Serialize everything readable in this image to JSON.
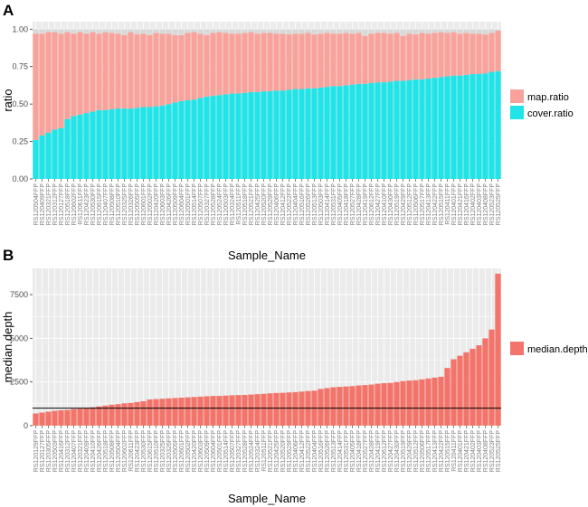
{
  "colors": {
    "panel_bg": "#ebebeb",
    "grid": "#ffffff",
    "gap": "#d9d9d9",
    "map_ratio": "#f8a29b",
    "cover_ratio": "#20e4e7",
    "median_depth": "#f2746a",
    "reference_line": "#000000"
  },
  "chart_data": [
    {
      "panel": "A",
      "type": "bar",
      "stacked": true,
      "xlabel": "Sample_Name",
      "ylabel": "ratio",
      "ylim": [
        0,
        1.05
      ],
      "yticks": [
        0.0,
        0.25,
        0.5,
        0.75,
        1.0
      ],
      "ytick_labels": [
        "0.00",
        "0.25",
        "0.50",
        "0.75",
        "1.00"
      ],
      "categories": [
        "RS120504FFP",
        "RS120409FFP",
        "RS120321FFP",
        "RS120312FFP",
        "RS120127FFP",
        "RS120518FFP",
        "RS120602FFP",
        "RS120611FFP",
        "RS120423FFP",
        "RS120530FFP",
        "RS120615FFP",
        "RS120407FFP",
        "RS120508FFP",
        "RS120510FFP",
        "RS120325FFP",
        "RS120326FFP",
        "RS120505FFP",
        "RS120601FFP",
        "RS120502FFP",
        "RS120420FFP",
        "RS120603FFP",
        "RS120426FFP",
        "RS120509FFP",
        "RS120604FFP",
        "RS120501FFP",
        "RS120514FFP",
        "RS120507FFP",
        "RS120327FFP",
        "RS120528FFP",
        "RS120524FFP",
        "RS120503FFP",
        "RS120324FFP",
        "RS120511FFP",
        "RS120518FFP",
        "RS120521FFP",
        "RS120425FFP",
        "RS120520FFP",
        "RS120529FFP",
        "RS120406FFP",
        "RS120412FFP",
        "RS120522FFP",
        "RS120404FFP",
        "RS120516FFP",
        "RS120526FFP",
        "RS120513FFP",
        "RS120503FFP",
        "RS120414FFP",
        "RS120531FFP",
        "RS120405FFP",
        "RS120418FFP",
        "RS120527FFP",
        "RS120428FFP",
        "RS120419FFP",
        "RS120612FFP",
        "RS120427FFP",
        "RS120410FFP",
        "RS120430FFP",
        "RS120519FFP",
        "RS120429FFP",
        "RS120512FFP",
        "RS120506FFP",
        "RS120517FFP",
        "RS120413FFP",
        "RS120422FFP",
        "RS120515FFP",
        "RS120411FFP",
        "RS120401FFP",
        "RS120421FFP",
        "RS120416FFP",
        "RS120402FFP",
        "RS120403FFP",
        "RS120408FFP",
        "RS120523FFP",
        "RS120525FFP"
      ],
      "series": [
        {
          "name": "cover.ratio",
          "values": [
            0.26,
            0.29,
            0.31,
            0.33,
            0.34,
            0.4,
            0.42,
            0.43,
            0.44,
            0.45,
            0.46,
            0.46,
            0.465,
            0.47,
            0.47,
            0.47,
            0.475,
            0.48,
            0.48,
            0.485,
            0.49,
            0.5,
            0.51,
            0.52,
            0.525,
            0.53,
            0.54,
            0.55,
            0.555,
            0.56,
            0.565,
            0.57,
            0.57,
            0.575,
            0.58,
            0.58,
            0.585,
            0.585,
            0.59,
            0.59,
            0.595,
            0.6,
            0.6,
            0.605,
            0.605,
            0.61,
            0.615,
            0.62,
            0.62,
            0.625,
            0.63,
            0.635,
            0.635,
            0.64,
            0.645,
            0.645,
            0.65,
            0.655,
            0.655,
            0.66,
            0.665,
            0.665,
            0.67,
            0.675,
            0.68,
            0.685,
            0.69,
            0.69,
            0.695,
            0.7,
            0.7,
            0.705,
            0.715,
            0.72
          ]
        },
        {
          "name": "map.ratio",
          "values": [
            0.71,
            0.68,
            0.67,
            0.65,
            0.63,
            0.58,
            0.55,
            0.55,
            0.53,
            0.53,
            0.51,
            0.52,
            0.51,
            0.5,
            0.49,
            0.51,
            0.49,
            0.49,
            0.48,
            0.49,
            0.48,
            0.47,
            0.45,
            0.44,
            0.45,
            0.45,
            0.43,
            0.41,
            0.42,
            0.42,
            0.41,
            0.4,
            0.4,
            0.4,
            0.4,
            0.39,
            0.39,
            0.39,
            0.38,
            0.38,
            0.37,
            0.37,
            0.37,
            0.37,
            0.36,
            0.36,
            0.36,
            0.35,
            0.35,
            0.35,
            0.34,
            0.34,
            0.32,
            0.33,
            0.33,
            0.33,
            0.32,
            0.32,
            0.3,
            0.31,
            0.3,
            0.31,
            0.3,
            0.3,
            0.3,
            0.29,
            0.29,
            0.28,
            0.28,
            0.27,
            0.27,
            0.26,
            0.26,
            0.27
          ]
        }
      ],
      "legend": [
        {
          "label": "map.ratio",
          "color_key": "map_ratio"
        },
        {
          "label": "cover.ratio",
          "color_key": "cover_ratio"
        }
      ]
    },
    {
      "panel": "B",
      "type": "bar",
      "stacked": false,
      "xlabel": "Sample_Name",
      "ylabel": "median.depth",
      "ylim": [
        0,
        9000
      ],
      "yticks": [
        0,
        2500,
        5000,
        7500
      ],
      "ytick_labels": [
        "0",
        "2500",
        "5000",
        "7500"
      ],
      "reference_line": 1000,
      "categories": [
        "RS120129FFP",
        "RS120127FFP",
        "RS120305FFP",
        "RS120503FFP",
        "RS120416FFP",
        "RS120312FFP",
        "RS120407FFP",
        "RS120321FFP",
        "RS120409FFP",
        "RS120410FFP",
        "RS120426FFP",
        "RS120518FFP",
        "RS120508FFP",
        "RS120504FFP",
        "RS120602FFP",
        "RS120611FFP",
        "RS120423FFP",
        "RS120530FFP",
        "RS120615FFP",
        "RS120510FFP",
        "RS120325FFP",
        "RS120326FFP",
        "RS120505FFP",
        "RS120601FFP",
        "RS120502FFP",
        "RS120420FFP",
        "RS120603FFP",
        "RS120509FFP",
        "RS120604FFP",
        "RS120501FFP",
        "RS120514FFP",
        "RS120507FFP",
        "RS120327FFP",
        "RS120528FFP",
        "RS120524FFP",
        "RS120324FFP",
        "RS120511FFP",
        "RS120521FFP",
        "RS120425FFP",
        "RS120520FFP",
        "RS120529FFP",
        "RS120406FFP",
        "RS120412FFP",
        "RS120522FFP",
        "RS120404FFP",
        "RS120516FFP",
        "RS120526FFP",
        "RS120513FFP",
        "RS120414FFP",
        "RS120531FFP",
        "RS120405FFP",
        "RS120418FFP",
        "RS120527FFP",
        "RS120428FFP",
        "RS120419FFP",
        "RS120612FFP",
        "RS120427FFP",
        "RS120430FFP",
        "RS120519FFP",
        "RS120429FFP",
        "RS120512FFP",
        "RS120506FFP",
        "RS120517FFP",
        "RS120413FFP",
        "RS120422FFP",
        "RS120515FFP",
        "RS120411FFP",
        "RS120401FFP",
        "RS120421FFP",
        "RS120402FFP",
        "RS120403FFP",
        "RS120408FFP",
        "RS120523FFP",
        "RS120525FFP"
      ],
      "series": [
        {
          "name": "median.depth",
          "values": [
            700,
            750,
            800,
            850,
            880,
            900,
            950,
            970,
            1000,
            1050,
            1100,
            1150,
            1200,
            1230,
            1280,
            1300,
            1350,
            1400,
            1500,
            1520,
            1540,
            1560,
            1580,
            1600,
            1620,
            1640,
            1660,
            1680,
            1700,
            1700,
            1720,
            1740,
            1750,
            1760,
            1780,
            1800,
            1820,
            1850,
            1870,
            1880,
            1900,
            1920,
            1950,
            1980,
            2000,
            2100,
            2150,
            2200,
            2220,
            2240,
            2260,
            2300,
            2320,
            2350,
            2400,
            2430,
            2450,
            2500,
            2550,
            2580,
            2600,
            2650,
            2700,
            2750,
            2800,
            3300,
            3800,
            4000,
            4200,
            4400,
            4600,
            5000,
            5500,
            8700
          ]
        }
      ],
      "legend": [
        {
          "label": "median.depth",
          "color_key": "median_depth"
        }
      ]
    }
  ]
}
